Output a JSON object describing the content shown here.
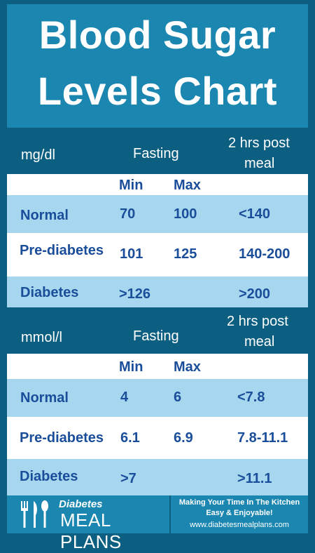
{
  "title": {
    "line1": "Blood Sugar",
    "line2": "Levels Chart"
  },
  "colors": {
    "background": "#0c5f80",
    "title_box": "#1b86b0",
    "row_blue": "#8fcae6",
    "row_white": "#ffffff",
    "text_blue": "#1a4d9a"
  },
  "mgdl": {
    "unit": "mg/dl",
    "fasting": "Fasting",
    "post_meal_1": "2 hrs post",
    "post_meal_2": "meal",
    "min": "Min",
    "max": "Max",
    "rows": [
      {
        "label": "Normal",
        "min": "70",
        "max": "100",
        "post": "<140"
      },
      {
        "label": "Pre-diabetes",
        "min": "101",
        "max": "125",
        "post": "140-200"
      },
      {
        "label": "Diabetes",
        "min": ">126",
        "max": "",
        "post": ">200"
      }
    ]
  },
  "mmol": {
    "unit": "mmol/l",
    "fasting": "Fasting",
    "post_meal_1": "2 hrs post",
    "post_meal_2": "meal",
    "min": "Min",
    "max": "Max",
    "rows": [
      {
        "label": "Normal",
        "min": "4",
        "max": "6",
        "post": "<7.8"
      },
      {
        "label": "Pre-diabetes",
        "min": "6.1",
        "max": "6.9",
        "post": "7.8-11.1"
      },
      {
        "label": "Diabetes",
        "min": ">7",
        "max": "",
        "post": ">11.1"
      }
    ]
  },
  "footer": {
    "brand_small": "Diabetes",
    "brand_big": "MEAL PLANS",
    "tagline_1": "Making Your Time In The Kitchen",
    "tagline_2": "Easy & Enjoyable!",
    "website": "www.diabetesmealplans.com",
    "logo_icon": "fork-knife-spoon-icon"
  }
}
